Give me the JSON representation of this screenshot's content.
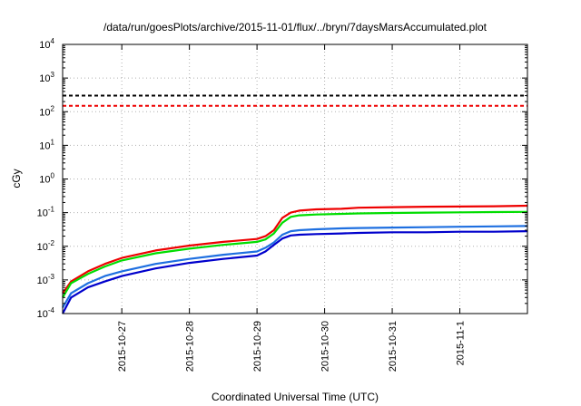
{
  "chart_data": {
    "type": "line",
    "title": "/data/run/goesPlots/archive/2015-11-01/flux/../bryn/7daysMarsAccumulated.plot",
    "xlabel": "Coordinated Universal Time (UTC)",
    "ylabel": "cGy",
    "yscale": "log",
    "ylim": [
      0.0001,
      10000
    ],
    "xlim": [
      "2015-10-26T03:00",
      "2015-11-02T00:00"
    ],
    "x_ticks": [
      "2015-10-27",
      "2015-10-28",
      "2015-10-29",
      "2015-10-30",
      "2015-10-31",
      "2015-11-1"
    ],
    "y_ticks": [
      {
        "value": 0.0001,
        "base": "10",
        "exp": "-4"
      },
      {
        "value": 0.001,
        "base": "10",
        "exp": "-3"
      },
      {
        "value": 0.01,
        "base": "10",
        "exp": "-2"
      },
      {
        "value": 0.1,
        "base": "10",
        "exp": "-1"
      },
      {
        "value": 1,
        "base": "10",
        "exp": "0"
      },
      {
        "value": 10,
        "base": "10",
        "exp": "1"
      },
      {
        "value": 100,
        "base": "10",
        "exp": "2"
      },
      {
        "value": 1000,
        "base": "10",
        "exp": "3"
      },
      {
        "value": 10000,
        "base": "10",
        "exp": "4"
      }
    ],
    "grid": true,
    "x": [
      "2015-10-26T03:00",
      "2015-10-26T06:00",
      "2015-10-26T12:00",
      "2015-10-26T18:00",
      "2015-10-27T00:00",
      "2015-10-27T12:00",
      "2015-10-28T00:00",
      "2015-10-28T12:00",
      "2015-10-29T00:00",
      "2015-10-29T03:00",
      "2015-10-29T06:00",
      "2015-10-29T09:00",
      "2015-10-29T12:00",
      "2015-10-29T15:00",
      "2015-10-29T21:00",
      "2015-10-30T06:00",
      "2015-10-30T12:00",
      "2015-10-31T00:00",
      "2015-10-31T12:00",
      "2015-11-01T00:00",
      "2015-11-01T12:00",
      "2015-11-02T00:00"
    ],
    "series": [
      {
        "color": "#ee0000",
        "values": [
          0.0004,
          0.0009,
          0.0018,
          0.003,
          0.0045,
          0.0075,
          0.0105,
          0.0135,
          0.0165,
          0.02,
          0.03,
          0.07,
          0.1,
          0.115,
          0.125,
          0.13,
          0.14,
          0.145,
          0.15,
          0.152,
          0.155,
          0.16
        ]
      },
      {
        "color": "#00dd00",
        "values": [
          0.0003,
          0.0008,
          0.0015,
          0.0025,
          0.0038,
          0.0062,
          0.0085,
          0.011,
          0.0135,
          0.016,
          0.024,
          0.05,
          0.075,
          0.083,
          0.088,
          0.092,
          0.095,
          0.098,
          0.1,
          0.102,
          0.104,
          0.105
        ]
      },
      {
        "color": "#1e6fe0",
        "values": [
          0.00015,
          0.0004,
          0.0008,
          0.0013,
          0.0018,
          0.003,
          0.0042,
          0.0056,
          0.007,
          0.009,
          0.013,
          0.022,
          0.028,
          0.03,
          0.032,
          0.034,
          0.035,
          0.036,
          0.037,
          0.038,
          0.039,
          0.04
        ]
      },
      {
        "color": "#0000cc",
        "values": [
          0.0001,
          0.0003,
          0.0006,
          0.0009,
          0.0013,
          0.0022,
          0.0032,
          0.0042,
          0.0053,
          0.007,
          0.011,
          0.017,
          0.021,
          0.022,
          0.023,
          0.024,
          0.025,
          0.026,
          0.026,
          0.027,
          0.027,
          0.028
        ]
      }
    ],
    "thresholds": [
      {
        "value": 300,
        "color": "#000000"
      },
      {
        "value": 150,
        "color": "#ee0000"
      }
    ]
  }
}
